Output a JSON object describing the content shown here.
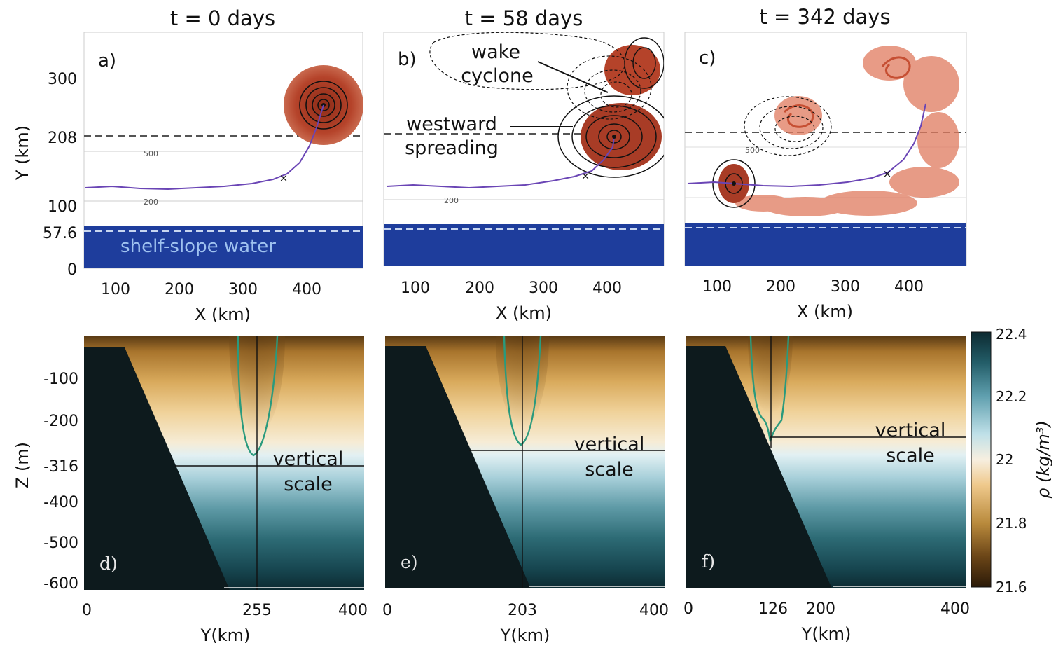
{
  "titles": [
    "t = 0 days",
    "t = 58 days",
    "t = 342 days"
  ],
  "panel_letters": [
    "a)",
    "b)",
    "c)",
    "d)",
    "e)",
    "f)"
  ],
  "annotations": {
    "wake_cyclone": [
      "wake",
      "cyclone"
    ],
    "westward_spreading": [
      "westward",
      "spreading"
    ],
    "shelf_slope_water": "shelf-slope water",
    "vertical_scale": [
      "vertical",
      "scale"
    ]
  },
  "depth_labels": [
    "500",
    "200"
  ],
  "colors": {
    "eddy": "#b5432a",
    "shelf_water": "#1e3d9c",
    "track": "#6a45b5",
    "isopycnal_contour": "#2a9a7d",
    "density_light": "#2b1a08",
    "density_mid": "#efc98c",
    "density_dense": "#0c2a31"
  },
  "chart_data": [
    {
      "panel": "a",
      "type": "contour",
      "title": "t = 0 days",
      "xlabel": "X (km)",
      "ylabel": "Y (km)",
      "xlim": [
        50,
        490
      ],
      "ylim": [
        0,
        370
      ],
      "xticks": [
        "100",
        "200",
        "300",
        "400"
      ],
      "yticks": [
        "0",
        "57.6",
        "100",
        "208",
        "300"
      ],
      "reference_lines": {
        "dashed_y": 208,
        "shelf_dashed_y": 57.6
      },
      "eddy_center": [
        430,
        260
      ],
      "track_marker_x": [
        365,
        145
      ]
    },
    {
      "panel": "b",
      "type": "contour",
      "title": "t = 58 days",
      "xlabel": "X (km)",
      "ylabel": "",
      "xlim": [
        50,
        490
      ],
      "ylim": [
        0,
        370
      ],
      "xticks": [
        "100",
        "200",
        "300",
        "400"
      ],
      "reference_lines": {
        "dashed_y": 208
      },
      "eddy_center": [
        410,
        205
      ],
      "track_marker_x": [
        365,
        145
      ]
    },
    {
      "panel": "c",
      "type": "contour",
      "title": "t = 342 days",
      "xlabel": "X (km)",
      "ylabel": "",
      "xlim": [
        50,
        490
      ],
      "ylim": [
        0,
        370
      ],
      "xticks": [
        "100",
        "200",
        "300",
        "400"
      ],
      "reference_lines": {
        "dashed_y": 208
      },
      "eddy_center": [
        130,
        130
      ],
      "track_marker_x": [
        365,
        145
      ]
    },
    {
      "panel": "d",
      "type": "heatmap",
      "xlabel": "Y(km)",
      "ylabel": "Z (m)",
      "xlim": [
        0,
        400
      ],
      "ylim": [
        -620,
        0
      ],
      "xticks": [
        "0",
        "255",
        "400"
      ],
      "yticks": [
        "-100",
        "-200",
        "-316",
        "-400",
        "-500",
        "-600"
      ],
      "section_y": 255,
      "vertical_scale_z": -316
    },
    {
      "panel": "e",
      "type": "heatmap",
      "xlabel": "Y(km)",
      "ylabel": "",
      "xlim": [
        0,
        400
      ],
      "ylim": [
        -620,
        0
      ],
      "xticks": [
        "0",
        "203",
        "400"
      ],
      "section_y": 203,
      "vertical_scale_z": -280
    },
    {
      "panel": "f",
      "type": "heatmap",
      "xlabel": "Y(km)",
      "ylabel": "",
      "xlim": [
        0,
        400
      ],
      "ylim": [
        -620,
        0
      ],
      "xticks": [
        "0",
        "126",
        "200",
        "400"
      ],
      "section_y": 126,
      "vertical_scale_z": -250
    }
  ],
  "colorbar": {
    "label": "ρ (kg/m³)",
    "range": [
      21.6,
      22.4
    ],
    "ticks": [
      "22.4",
      "22.2",
      "22",
      "21.8",
      "21.6"
    ]
  }
}
